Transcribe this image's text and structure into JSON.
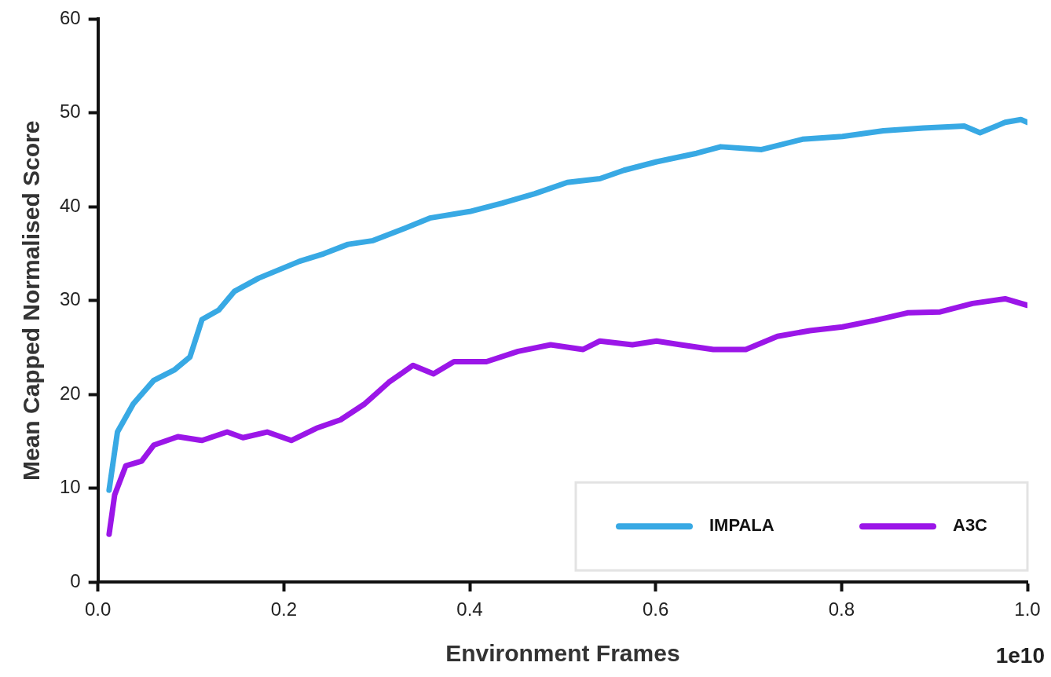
{
  "chart_data": {
    "type": "line",
    "xlabel": "Environment Frames",
    "ylabel": "Mean Capped Normalised Score",
    "annotations": [
      "1e10"
    ],
    "xlim": [
      0,
      1
    ],
    "xticks": [
      {
        "value": 0,
        "label": "0.0"
      },
      {
        "value": 0.2,
        "label": "0.2"
      },
      {
        "value": 0.4,
        "label": "0.4"
      },
      {
        "value": 0.6,
        "label": "0.6"
      },
      {
        "value": 0.8,
        "label": "0.8"
      },
      {
        "value": 1,
        "label": "1.0"
      }
    ],
    "ylim": [
      0,
      60
    ],
    "yticks": [
      0,
      10,
      20,
      30,
      40,
      50,
      60
    ],
    "legend": "bottom right",
    "marker": "none",
    "line_style": "solid",
    "series": [
      {
        "name": "IMPALA",
        "color": "#38a9e4",
        "x": [
          0.012,
          0.021,
          0.038,
          0.06,
          0.082,
          0.099,
          0.112,
          0.13,
          0.147,
          0.173,
          0.195,
          0.217,
          0.243,
          0.269,
          0.296,
          0.33,
          0.357,
          0.4,
          0.435,
          0.47,
          0.505,
          0.54,
          0.566,
          0.601,
          0.644,
          0.67,
          0.714,
          0.758,
          0.801,
          0.845,
          0.888,
          0.932,
          0.949,
          0.976,
          0.993,
          1.0
        ],
        "values": [
          9.8,
          16,
          19,
          21.5,
          22.6,
          24,
          28,
          29,
          31,
          32.4,
          33.3,
          34.2,
          35,
          36,
          36.4,
          37.7,
          38.8,
          39.5,
          40.4,
          41.4,
          42.6,
          43,
          43.9,
          44.8,
          45.7,
          46.4,
          46.1,
          47.2,
          47.5,
          48.1,
          48.4,
          48.6,
          47.9,
          49,
          49.3,
          49
        ]
      },
      {
        "name": "A3C",
        "color": "#9b16e8",
        "x": [
          0.012,
          0.018,
          0.03,
          0.047,
          0.06,
          0.086,
          0.112,
          0.139,
          0.156,
          0.182,
          0.208,
          0.235,
          0.261,
          0.287,
          0.313,
          0.339,
          0.361,
          0.383,
          0.418,
          0.452,
          0.487,
          0.522,
          0.54,
          0.575,
          0.601,
          0.627,
          0.662,
          0.697,
          0.731,
          0.766,
          0.801,
          0.836,
          0.871,
          0.906,
          0.941,
          0.976,
          1.0
        ],
        "values": [
          5.1,
          9.3,
          12.4,
          12.9,
          14.6,
          15.5,
          15.1,
          16,
          15.4,
          16,
          15.1,
          16.4,
          17.3,
          19,
          21.3,
          23.1,
          22.2,
          23.5,
          23.5,
          24.6,
          25.3,
          24.8,
          25.7,
          25.3,
          25.7,
          25.3,
          24.8,
          24.8,
          26.2,
          26.8,
          27.2,
          27.9,
          28.7,
          28.8,
          29.7,
          30.2,
          29.5
        ]
      }
    ]
  }
}
